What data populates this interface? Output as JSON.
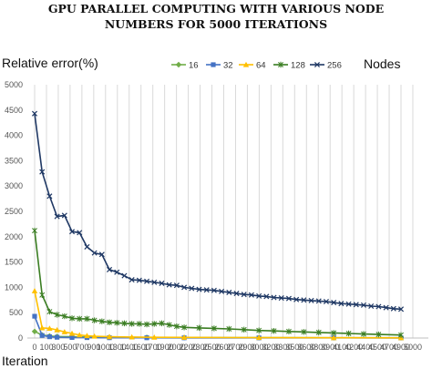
{
  "chart_data": {
    "type": "line",
    "title_lines": [
      "GPU PARALLEL COMPUTING WITH VARIOUS NODE",
      "NUMBERS FOR 5000 ITERATIONS"
    ],
    "ylabel": "Relative error(%)",
    "xlabel": "Iteration",
    "legend_title": "Nodes",
    "legend_position": "top-right",
    "ylim": [
      0,
      5000
    ],
    "y_ticks": [
      0,
      500,
      1000,
      1500,
      2000,
      2500,
      3000,
      3500,
      4000,
      4500,
      5000
    ],
    "xlim": [
      -100,
      5000
    ],
    "x_tick_labels": [
      "0",
      "100",
      "300",
      "500",
      "700",
      "900",
      "1000",
      "1300",
      "1400",
      "1600",
      "1700",
      "1900",
      "2000",
      "2200",
      "2300",
      "2500",
      "2600",
      "2700",
      "2900",
      "3000",
      "3200",
      "3300",
      "3500",
      "3600",
      "3800",
      "3900",
      "4100",
      "4200",
      "4400",
      "4500",
      "4700",
      "4900",
      "5000"
    ],
    "grid": "vertical",
    "series": [
      {
        "name": "16",
        "color": "#70ad47",
        "marker": "diamond",
        "x": [
          0,
          100,
          200,
          300,
          500,
          700,
          1000,
          1500,
          2000,
          3000,
          4000,
          4900
        ],
        "values": [
          130,
          60,
          40,
          30,
          25,
          20,
          15,
          12,
          10,
          8,
          6,
          5
        ]
      },
      {
        "name": "32",
        "color": "#4472c4",
        "marker": "square",
        "x": [
          0,
          100,
          200,
          300,
          500,
          700,
          1000,
          1500,
          2000,
          3000,
          4000,
          4900
        ],
        "values": [
          430,
          50,
          25,
          15,
          10,
          8,
          6,
          5,
          4,
          3,
          3,
          2
        ]
      },
      {
        "name": "64",
        "color": "#ffc000",
        "marker": "triangle",
        "x": [
          0,
          100,
          200,
          300,
          400,
          500,
          600,
          700,
          800,
          1000,
          1300,
          1600,
          2000,
          3000,
          4000,
          4900
        ],
        "values": [
          930,
          200,
          190,
          160,
          120,
          90,
          60,
          45,
          35,
          25,
          20,
          15,
          12,
          8,
          5,
          4
        ]
      },
      {
        "name": "128",
        "color": "#3a7d22",
        "marker": "star",
        "x": [
          0,
          100,
          200,
          300,
          400,
          500,
          600,
          700,
          800,
          900,
          1000,
          1100,
          1200,
          1300,
          1400,
          1500,
          1600,
          1700,
          1800,
          1900,
          2000,
          2200,
          2400,
          2600,
          2800,
          3000,
          3200,
          3400,
          3600,
          3800,
          4000,
          4200,
          4400,
          4600,
          4900
        ],
        "values": [
          2120,
          850,
          520,
          460,
          430,
          390,
          380,
          380,
          350,
          330,
          310,
          300,
          290,
          280,
          280,
          270,
          280,
          290,
          260,
          230,
          210,
          200,
          190,
          180,
          165,
          150,
          140,
          130,
          120,
          110,
          100,
          90,
          80,
          70,
          60
        ]
      },
      {
        "name": "256",
        "color": "#1f3864",
        "marker": "x",
        "x": [
          0,
          100,
          200,
          300,
          400,
          500,
          600,
          700,
          800,
          900,
          1000,
          1100,
          1200,
          1300,
          1400,
          1500,
          1600,
          1700,
          1800,
          1900,
          2000,
          2100,
          2200,
          2300,
          2400,
          2500,
          2600,
          2700,
          2800,
          2900,
          3000,
          3100,
          3200,
          3300,
          3400,
          3500,
          3600,
          3700,
          3800,
          3900,
          4000,
          4100,
          4200,
          4300,
          4400,
          4500,
          4600,
          4700,
          4800,
          4900
        ],
        "values": [
          4430,
          3280,
          2800,
          2400,
          2420,
          2100,
          2080,
          1800,
          1680,
          1650,
          1350,
          1300,
          1230,
          1150,
          1140,
          1120,
          1100,
          1080,
          1050,
          1040,
          1000,
          980,
          960,
          950,
          940,
          920,
          900,
          880,
          860,
          850,
          830,
          820,
          800,
          790,
          780,
          760,
          750,
          740,
          730,
          720,
          700,
          680,
          670,
          660,
          650,
          630,
          620,
          600,
          580,
          570
        ]
      }
    ]
  }
}
